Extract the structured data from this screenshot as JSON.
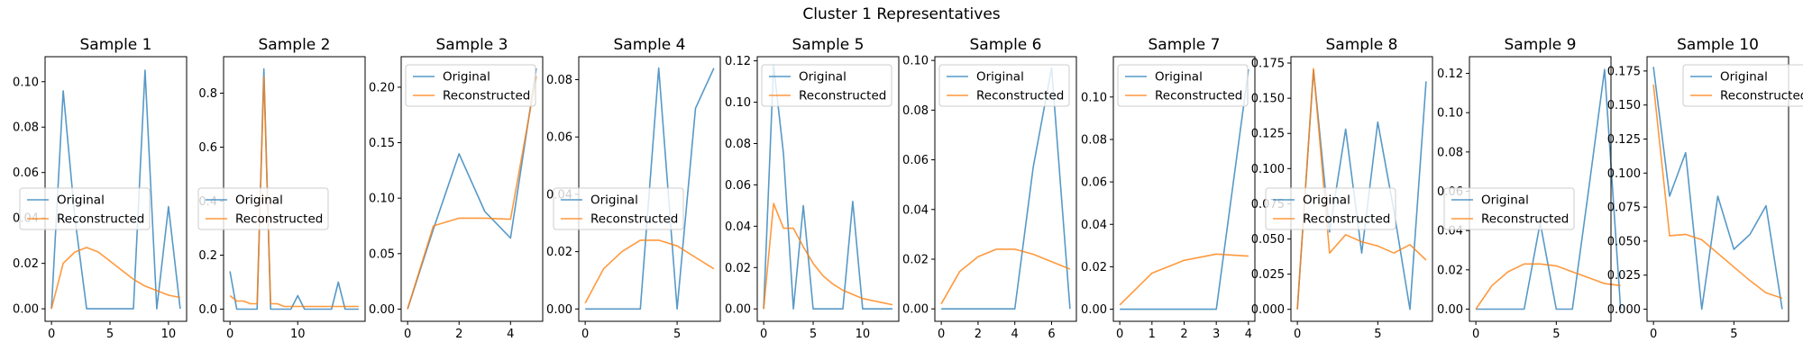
{
  "figure": {
    "suptitle": "Cluster 1 Representatives"
  },
  "colors": {
    "original": "#1f77b4",
    "reconstructed": "#ff7f0e"
  },
  "chart_data": [
    {
      "type": "line",
      "title": "Sample 1",
      "xlim": [
        -0.55,
        11.55
      ],
      "ylim": [
        -0.0055,
        0.111
      ],
      "xticks": [
        0,
        5,
        10
      ],
      "yticks": [
        0.0,
        0.02,
        0.04,
        0.06,
        0.08,
        0.1
      ],
      "tick_decimals": 2,
      "legend": "center left",
      "series": [
        {
          "name": "Original",
          "x": [
            0,
            1,
            2,
            3,
            4,
            5,
            6,
            7,
            8,
            9,
            10,
            11
          ],
          "values": [
            0.0,
            0.096,
            0.04,
            0.0,
            0.0,
            0.0,
            0.0,
            0.0,
            0.105,
            0.0,
            0.045,
            0.0
          ]
        },
        {
          "name": "Reconstructed",
          "x": [
            0,
            1,
            2,
            3,
            4,
            5,
            6,
            7,
            8,
            9,
            10,
            11
          ],
          "values": [
            0.0,
            0.02,
            0.025,
            0.027,
            0.025,
            0.021,
            0.017,
            0.013,
            0.01,
            0.008,
            0.006,
            0.005
          ]
        }
      ]
    },
    {
      "type": "line",
      "title": "Sample 2",
      "xlim": [
        -0.95,
        19.95
      ],
      "ylim": [
        -0.045,
        0.935
      ],
      "xticks": [
        0,
        10
      ],
      "yticks": [
        0.0,
        0.2,
        0.4,
        0.6,
        0.8
      ],
      "tick_decimals": 1,
      "legend": "center left",
      "series": [
        {
          "name": "Original",
          "x": [
            0,
            1,
            2,
            3,
            4,
            5,
            6,
            7,
            8,
            9,
            10,
            11,
            12,
            13,
            14,
            15,
            16,
            17,
            18,
            19
          ],
          "values": [
            0.14,
            0.0,
            0.0,
            0.0,
            0.0,
            0.89,
            0.0,
            0.0,
            0.0,
            0.0,
            0.05,
            0.0,
            0.0,
            0.0,
            0.0,
            0.0,
            0.1,
            0.0,
            0.0,
            0.0
          ]
        },
        {
          "name": "Reconstructed",
          "x": [
            0,
            1,
            2,
            3,
            4,
            5,
            6,
            7,
            8,
            9,
            10,
            11,
            12,
            13,
            14,
            15,
            16,
            17,
            18,
            19
          ],
          "values": [
            0.05,
            0.03,
            0.03,
            0.02,
            0.02,
            0.86,
            0.02,
            0.02,
            0.01,
            0.01,
            0.01,
            0.01,
            0.01,
            0.01,
            0.01,
            0.01,
            0.01,
            0.01,
            0.01,
            0.01
          ]
        }
      ]
    },
    {
      "type": "line",
      "title": "Sample 3",
      "xlim": [
        -0.25,
        5.25
      ],
      "ylim": [
        -0.011,
        0.2275
      ],
      "xticks": [
        0,
        2,
        4
      ],
      "yticks": [
        0.0,
        0.05,
        0.1,
        0.15,
        0.2
      ],
      "tick_decimals": 2,
      "legend": "upper left",
      "series": [
        {
          "name": "Original",
          "x": [
            0,
            1,
            2,
            3,
            4,
            5
          ],
          "values": [
            0.0,
            0.072,
            0.14,
            0.088,
            0.064,
            0.217
          ]
        },
        {
          "name": "Reconstructed",
          "x": [
            0,
            1,
            2,
            3,
            4,
            5
          ],
          "values": [
            0.0,
            0.075,
            0.082,
            0.082,
            0.081,
            0.21
          ]
        }
      ]
    },
    {
      "type": "line",
      "title": "Sample 4",
      "xlim": [
        -0.35,
        7.35
      ],
      "ylim": [
        -0.0043,
        0.088
      ],
      "xticks": [
        0,
        5
      ],
      "yticks": [
        0.0,
        0.02,
        0.04,
        0.06,
        0.08
      ],
      "tick_decimals": 2,
      "legend": "center left",
      "series": [
        {
          "name": "Original",
          "x": [
            0,
            1,
            2,
            3,
            4,
            5,
            6,
            7
          ],
          "values": [
            0.0,
            0.0,
            0.0,
            0.0,
            0.084,
            0.0,
            0.07,
            0.084
          ]
        },
        {
          "name": "Reconstructed",
          "x": [
            0,
            1,
            2,
            3,
            4,
            5,
            6,
            7
          ],
          "values": [
            0.002,
            0.014,
            0.02,
            0.024,
            0.024,
            0.022,
            0.018,
            0.014
          ]
        }
      ]
    },
    {
      "type": "line",
      "title": "Sample 5",
      "xlim": [
        -0.65,
        13.65
      ],
      "ylim": [
        -0.006,
        0.122
      ],
      "xticks": [
        0,
        5,
        10
      ],
      "yticks": [
        0.0,
        0.02,
        0.04,
        0.06,
        0.08,
        0.1,
        0.12
      ],
      "tick_decimals": 2,
      "legend": "upper left",
      "series": [
        {
          "name": "Original",
          "x": [
            0,
            1,
            2,
            3,
            4,
            5,
            6,
            7,
            8,
            9,
            10,
            11,
            12,
            13
          ],
          "values": [
            0.0,
            0.118,
            0.075,
            0.0,
            0.05,
            0.0,
            0.0,
            0.0,
            0.0,
            0.052,
            0.0,
            0.0,
            0.0,
            0.0
          ]
        },
        {
          "name": "Reconstructed",
          "x": [
            0,
            1,
            2,
            3,
            4,
            5,
            6,
            7,
            8,
            9,
            10,
            11,
            12,
            13
          ],
          "values": [
            0.0,
            0.051,
            0.039,
            0.039,
            0.03,
            0.022,
            0.016,
            0.012,
            0.009,
            0.007,
            0.005,
            0.004,
            0.003,
            0.002
          ]
        }
      ]
    },
    {
      "type": "line",
      "title": "Sample 6",
      "xlim": [
        -0.35,
        7.35
      ],
      "ylim": [
        -0.005,
        0.1015
      ],
      "xticks": [
        0,
        2,
        4,
        6
      ],
      "yticks": [
        0.0,
        0.02,
        0.04,
        0.06,
        0.08,
        0.1
      ],
      "tick_decimals": 2,
      "legend": "upper left",
      "series": [
        {
          "name": "Original",
          "x": [
            0,
            1,
            2,
            3,
            4,
            5,
            6,
            7
          ],
          "values": [
            0.0,
            0.0,
            0.0,
            0.0,
            0.0,
            0.057,
            0.097,
            0.0
          ]
        },
        {
          "name": "Reconstructed",
          "x": [
            0,
            1,
            2,
            3,
            4,
            5,
            6,
            7
          ],
          "values": [
            0.002,
            0.015,
            0.021,
            0.024,
            0.024,
            0.022,
            0.019,
            0.016
          ]
        }
      ]
    },
    {
      "type": "line",
      "title": "Sample 7",
      "xlim": [
        -0.2,
        4.2
      ],
      "ylim": [
        -0.0057,
        0.119
      ],
      "xticks": [
        0,
        1,
        2,
        3,
        4
      ],
      "yticks": [
        0.0,
        0.02,
        0.04,
        0.06,
        0.08,
        0.1
      ],
      "tick_decimals": 2,
      "legend": "upper left",
      "series": [
        {
          "name": "Original",
          "x": [
            0,
            1,
            2,
            3,
            4
          ],
          "values": [
            0.0,
            0.0,
            0.0,
            0.0,
            0.113
          ]
        },
        {
          "name": "Reconstructed",
          "x": [
            0,
            1,
            2,
            3,
            4
          ],
          "values": [
            0.002,
            0.017,
            0.023,
            0.026,
            0.025
          ]
        }
      ]
    },
    {
      "type": "line",
      "title": "Sample 8",
      "xlim": [
        -0.4,
        8.4
      ],
      "ylim": [
        -0.0085,
        0.1795
      ],
      "xticks": [
        0,
        5
      ],
      "yticks": [
        0.0,
        0.025,
        0.05,
        0.075,
        0.1,
        0.125,
        0.15,
        0.175
      ],
      "tick_decimals": 3,
      "legend": "center left",
      "series": [
        {
          "name": "Original",
          "x": [
            0,
            1,
            2,
            3,
            4,
            5,
            6,
            7,
            8
          ],
          "values": [
            0.0,
            0.17,
            0.055,
            0.128,
            0.04,
            0.133,
            0.07,
            0.0,
            0.162
          ]
        },
        {
          "name": "Reconstructed",
          "x": [
            0,
            1,
            2,
            3,
            4,
            5,
            6,
            7,
            8
          ],
          "values": [
            0.0,
            0.171,
            0.04,
            0.053,
            0.048,
            0.045,
            0.04,
            0.046,
            0.035
          ]
        }
      ]
    },
    {
      "type": "line",
      "title": "Sample 9",
      "xlim": [
        -0.4,
        8.4
      ],
      "ylim": [
        -0.0062,
        0.1285
      ],
      "xticks": [
        0,
        5
      ],
      "yticks": [
        0.0,
        0.02,
        0.04,
        0.06,
        0.08,
        0.1,
        0.12
      ],
      "tick_decimals": 2,
      "legend": "center left",
      "series": [
        {
          "name": "Original",
          "x": [
            0,
            1,
            2,
            3,
            4,
            5,
            6,
            7,
            8,
            9
          ],
          "values": [
            0.0,
            0.0,
            0.0,
            0.0,
            0.044,
            0.0,
            0.0,
            0.06,
            0.122,
            0.0
          ]
        },
        {
          "name": "Reconstructed",
          "x": [
            0,
            1,
            2,
            3,
            4,
            5,
            6,
            7,
            8,
            9
          ],
          "values": [
            0.0,
            0.012,
            0.019,
            0.023,
            0.023,
            0.022,
            0.019,
            0.016,
            0.013,
            0.012
          ]
        }
      ]
    },
    {
      "type": "line",
      "title": "Sample 10",
      "xlim": [
        -0.4,
        8.4
      ],
      "ylim": [
        -0.0089,
        0.1855
      ],
      "xticks": [
        0,
        5
      ],
      "yticks": [
        0.0,
        0.025,
        0.05,
        0.075,
        0.1,
        0.125,
        0.15,
        0.175
      ],
      "tick_decimals": 3,
      "legend": "upper right",
      "series": [
        {
          "name": "Original",
          "x": [
            0,
            1,
            2,
            3,
            4,
            5,
            6,
            7,
            8
          ],
          "values": [
            0.178,
            0.083,
            0.115,
            0.0,
            0.083,
            0.044,
            0.055,
            0.076,
            0.0
          ]
        },
        {
          "name": "Reconstructed",
          "x": [
            0,
            1,
            2,
            3,
            4,
            5,
            6,
            7,
            8
          ],
          "values": [
            0.165,
            0.054,
            0.055,
            0.051,
            0.041,
            0.031,
            0.021,
            0.012,
            0.008
          ]
        }
      ]
    }
  ]
}
